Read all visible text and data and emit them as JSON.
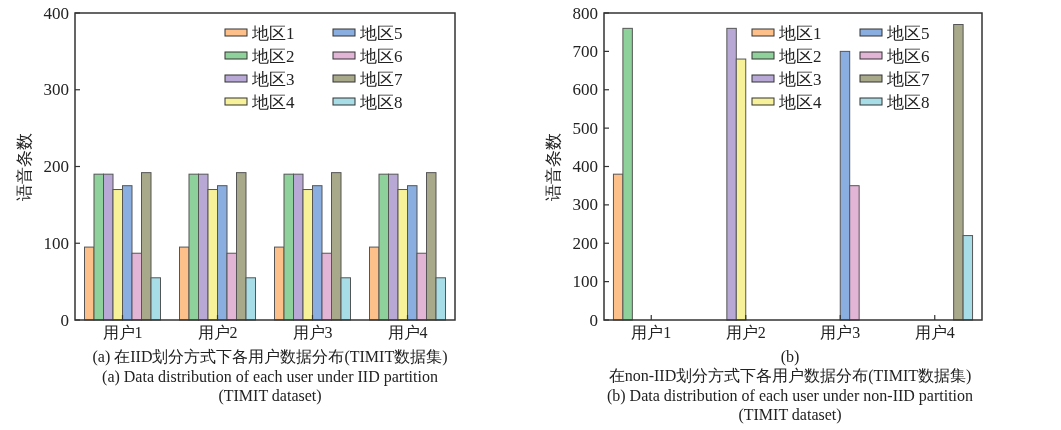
{
  "chart_data": [
    {
      "type": "bar",
      "categories": [
        "用户1",
        "用户2",
        "用户3",
        "用户4"
      ],
      "ylabel": "语音条数",
      "ylim": [
        0,
        400
      ],
      "yticks": [
        0,
        100,
        200,
        300,
        400
      ],
      "legend": "top right",
      "grid": false,
      "annotations": [
        "(a) 在IID划分方式下各用户数据分布(TIMIT数据集)",
        "(a) Data distribution of each user under IID partition (TIMIT dataset)"
      ],
      "series": [
        {
          "name": "地区1",
          "color": "#fdc08a",
          "values": [
            95,
            95,
            95,
            95
          ]
        },
        {
          "name": "地区2",
          "color": "#8fd19a",
          "values": [
            190,
            190,
            190,
            190
          ]
        },
        {
          "name": "地区3",
          "color": "#b8a8d6",
          "values": [
            190,
            190,
            190,
            190
          ]
        },
        {
          "name": "地区4",
          "color": "#f7f19a",
          "values": [
            170,
            170,
            170,
            170
          ]
        },
        {
          "name": "地区5",
          "color": "#8aaee0",
          "values": [
            175,
            175,
            175,
            175
          ]
        },
        {
          "name": "地区6",
          "color": "#e2b4d6",
          "values": [
            87,
            87,
            87,
            87
          ]
        },
        {
          "name": "地区7",
          "color": "#a8a88a",
          "values": [
            192,
            192,
            192,
            192
          ]
        },
        {
          "name": "地区8",
          "color": "#a6dde6",
          "values": [
            55,
            55,
            55,
            55
          ]
        }
      ]
    },
    {
      "type": "bar",
      "categories": [
        "用户1",
        "用户2",
        "用户3",
        "用户4"
      ],
      "ylabel": "语音条数",
      "ylim": [
        0,
        800
      ],
      "yticks": [
        0,
        100,
        200,
        300,
        400,
        500,
        600,
        700,
        800
      ],
      "legend": "top right",
      "grid": false,
      "annotations": [
        "(b) 在non-IID划分方式下各用户数据分布(TIMIT数据集)",
        "(b) Data distribution of each user under non-IID partition (TIMIT dataset)"
      ],
      "series": [
        {
          "name": "地区1",
          "color": "#fdc08a",
          "values": [
            380,
            0,
            0,
            0
          ]
        },
        {
          "name": "地区2",
          "color": "#8fd19a",
          "values": [
            760,
            0,
            0,
            0
          ]
        },
        {
          "name": "地区3",
          "color": "#b8a8d6",
          "values": [
            0,
            760,
            0,
            0
          ]
        },
        {
          "name": "地区4",
          "color": "#f7f19a",
          "values": [
            0,
            680,
            0,
            0
          ]
        },
        {
          "name": "地区5",
          "color": "#8aaee0",
          "values": [
            0,
            0,
            700,
            0
          ]
        },
        {
          "name": "地区6",
          "color": "#e2b4d6",
          "values": [
            0,
            0,
            350,
            0
          ]
        },
        {
          "name": "地区7",
          "color": "#a8a88a",
          "values": [
            0,
            0,
            0,
            770
          ]
        },
        {
          "name": "地区8",
          "color": "#a6dde6",
          "values": [
            0,
            0,
            0,
            220
          ]
        }
      ]
    }
  ]
}
